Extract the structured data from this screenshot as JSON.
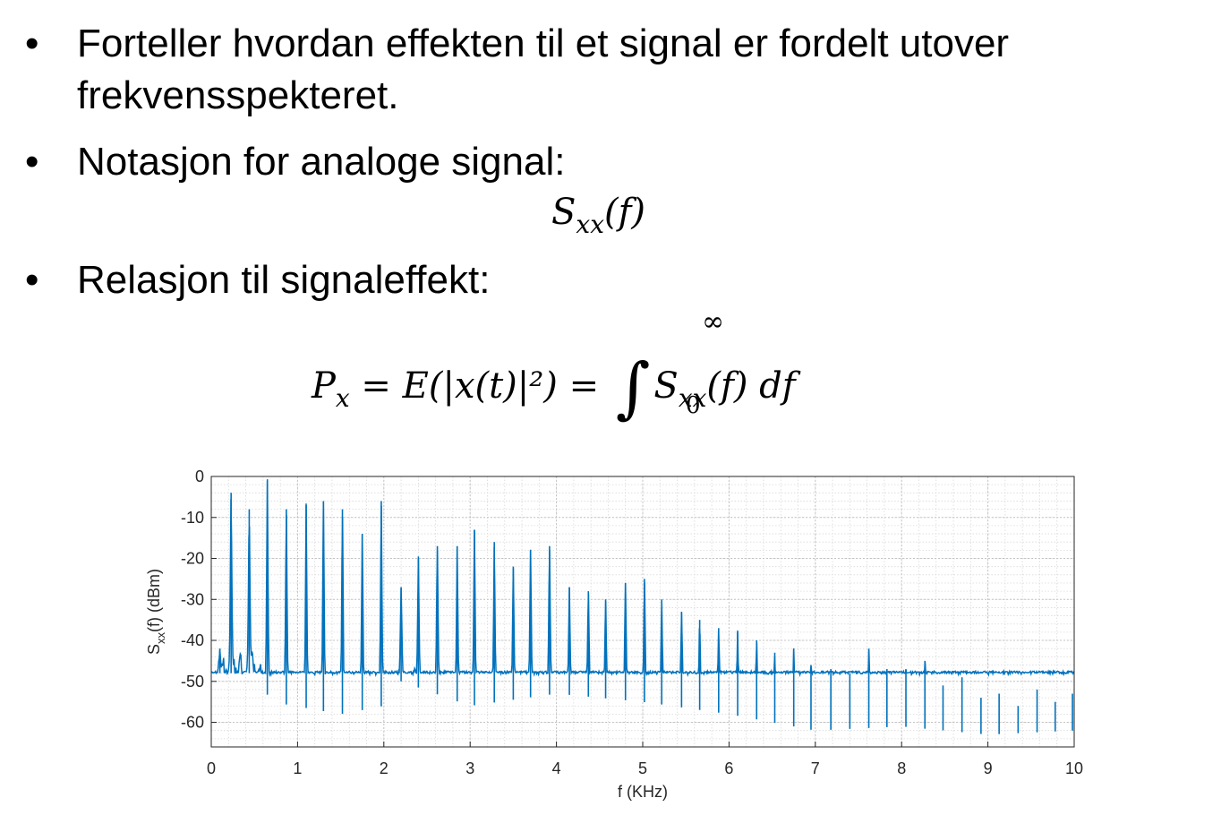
{
  "bullets": [
    {
      "marker": "•",
      "lines": [
        "Forteller hvordan effekten til et signal er fordelt utover",
        "frekvensspekteret."
      ]
    },
    {
      "marker": "•",
      "lines": [
        "Notasjon for analoge signal:"
      ]
    },
    {
      "marker": "•",
      "lines": [
        "Relasjon til signaleffekt:"
      ]
    }
  ],
  "equations": {
    "eq1": {
      "S": "S",
      "sub": "xx",
      "arg": "(f)"
    },
    "eq2": {
      "lhs": "P",
      "lhs_sub": "x",
      "middle": " = E(|x(t)|²) = ",
      "integral": "∫",
      "upper": "∞",
      "lower": "0",
      "S": "S",
      "sub": "xx",
      "tail": "(f) df"
    }
  },
  "colors": {
    "line": "#0072BD",
    "grid": "#d9d9d9",
    "axis": "#262626"
  },
  "chart_data": {
    "type": "line",
    "xlabel": "f (KHz)",
    "ylabel": "S_xx(f) (dBm)",
    "xlim": [
      0,
      10
    ],
    "ylim": [
      -66,
      0
    ],
    "xticks": [
      0,
      1,
      2,
      3,
      4,
      5,
      6,
      7,
      8,
      9,
      10
    ],
    "yticks": [
      0,
      -10,
      -20,
      -30,
      -40,
      -50,
      -60
    ],
    "grid": "major and minor",
    "series": [
      {
        "peaks_khz": [
          0.1,
          0.23,
          0.44,
          0.65,
          0.87,
          1.1,
          1.3,
          1.52,
          1.75,
          1.97,
          2.2,
          2.4,
          2.62,
          2.85,
          3.05,
          3.28,
          3.5,
          3.7,
          3.92,
          4.15,
          4.37,
          4.57,
          4.8,
          5.02,
          5.22,
          5.45,
          5.66,
          5.88,
          6.1,
          6.32,
          6.53,
          6.75,
          6.95,
          7.18,
          7.4,
          7.62,
          7.83,
          8.05,
          8.27,
          8.48,
          8.7,
          8.92,
          9.13,
          9.35,
          9.57,
          9.78,
          9.98
        ],
        "peaks_dbm": [
          -42,
          -4,
          -8,
          -1,
          -8,
          -7,
          -6,
          -8,
          -14,
          -6,
          -27,
          -20,
          -17,
          -17,
          -13,
          -16,
          -22,
          -18,
          -17,
          -27,
          -28,
          -30,
          -26,
          -25,
          -30,
          -33,
          -35,
          -37,
          -38,
          -40,
          -43,
          -42,
          -46,
          -47,
          -48,
          -42,
          -47,
          -47,
          -45,
          -51,
          -49,
          -54,
          -53,
          -56,
          -52,
          -55,
          -53
        ],
        "floor_dbm": [
          [
            0.0,
            -64
          ],
          [
            0.1,
            -48
          ],
          [
            0.5,
            -48
          ],
          [
            0.7,
            -55
          ],
          [
            1.5,
            -58
          ],
          [
            2.0,
            -56
          ],
          [
            2.2,
            -50
          ],
          [
            3.0,
            -56
          ],
          [
            4.0,
            -53
          ],
          [
            5.0,
            -55
          ],
          [
            6.0,
            -58
          ],
          [
            7.0,
            -62
          ],
          [
            8.0,
            -61
          ],
          [
            9.0,
            -63
          ],
          [
            10.0,
            -62
          ]
        ]
      }
    ]
  }
}
